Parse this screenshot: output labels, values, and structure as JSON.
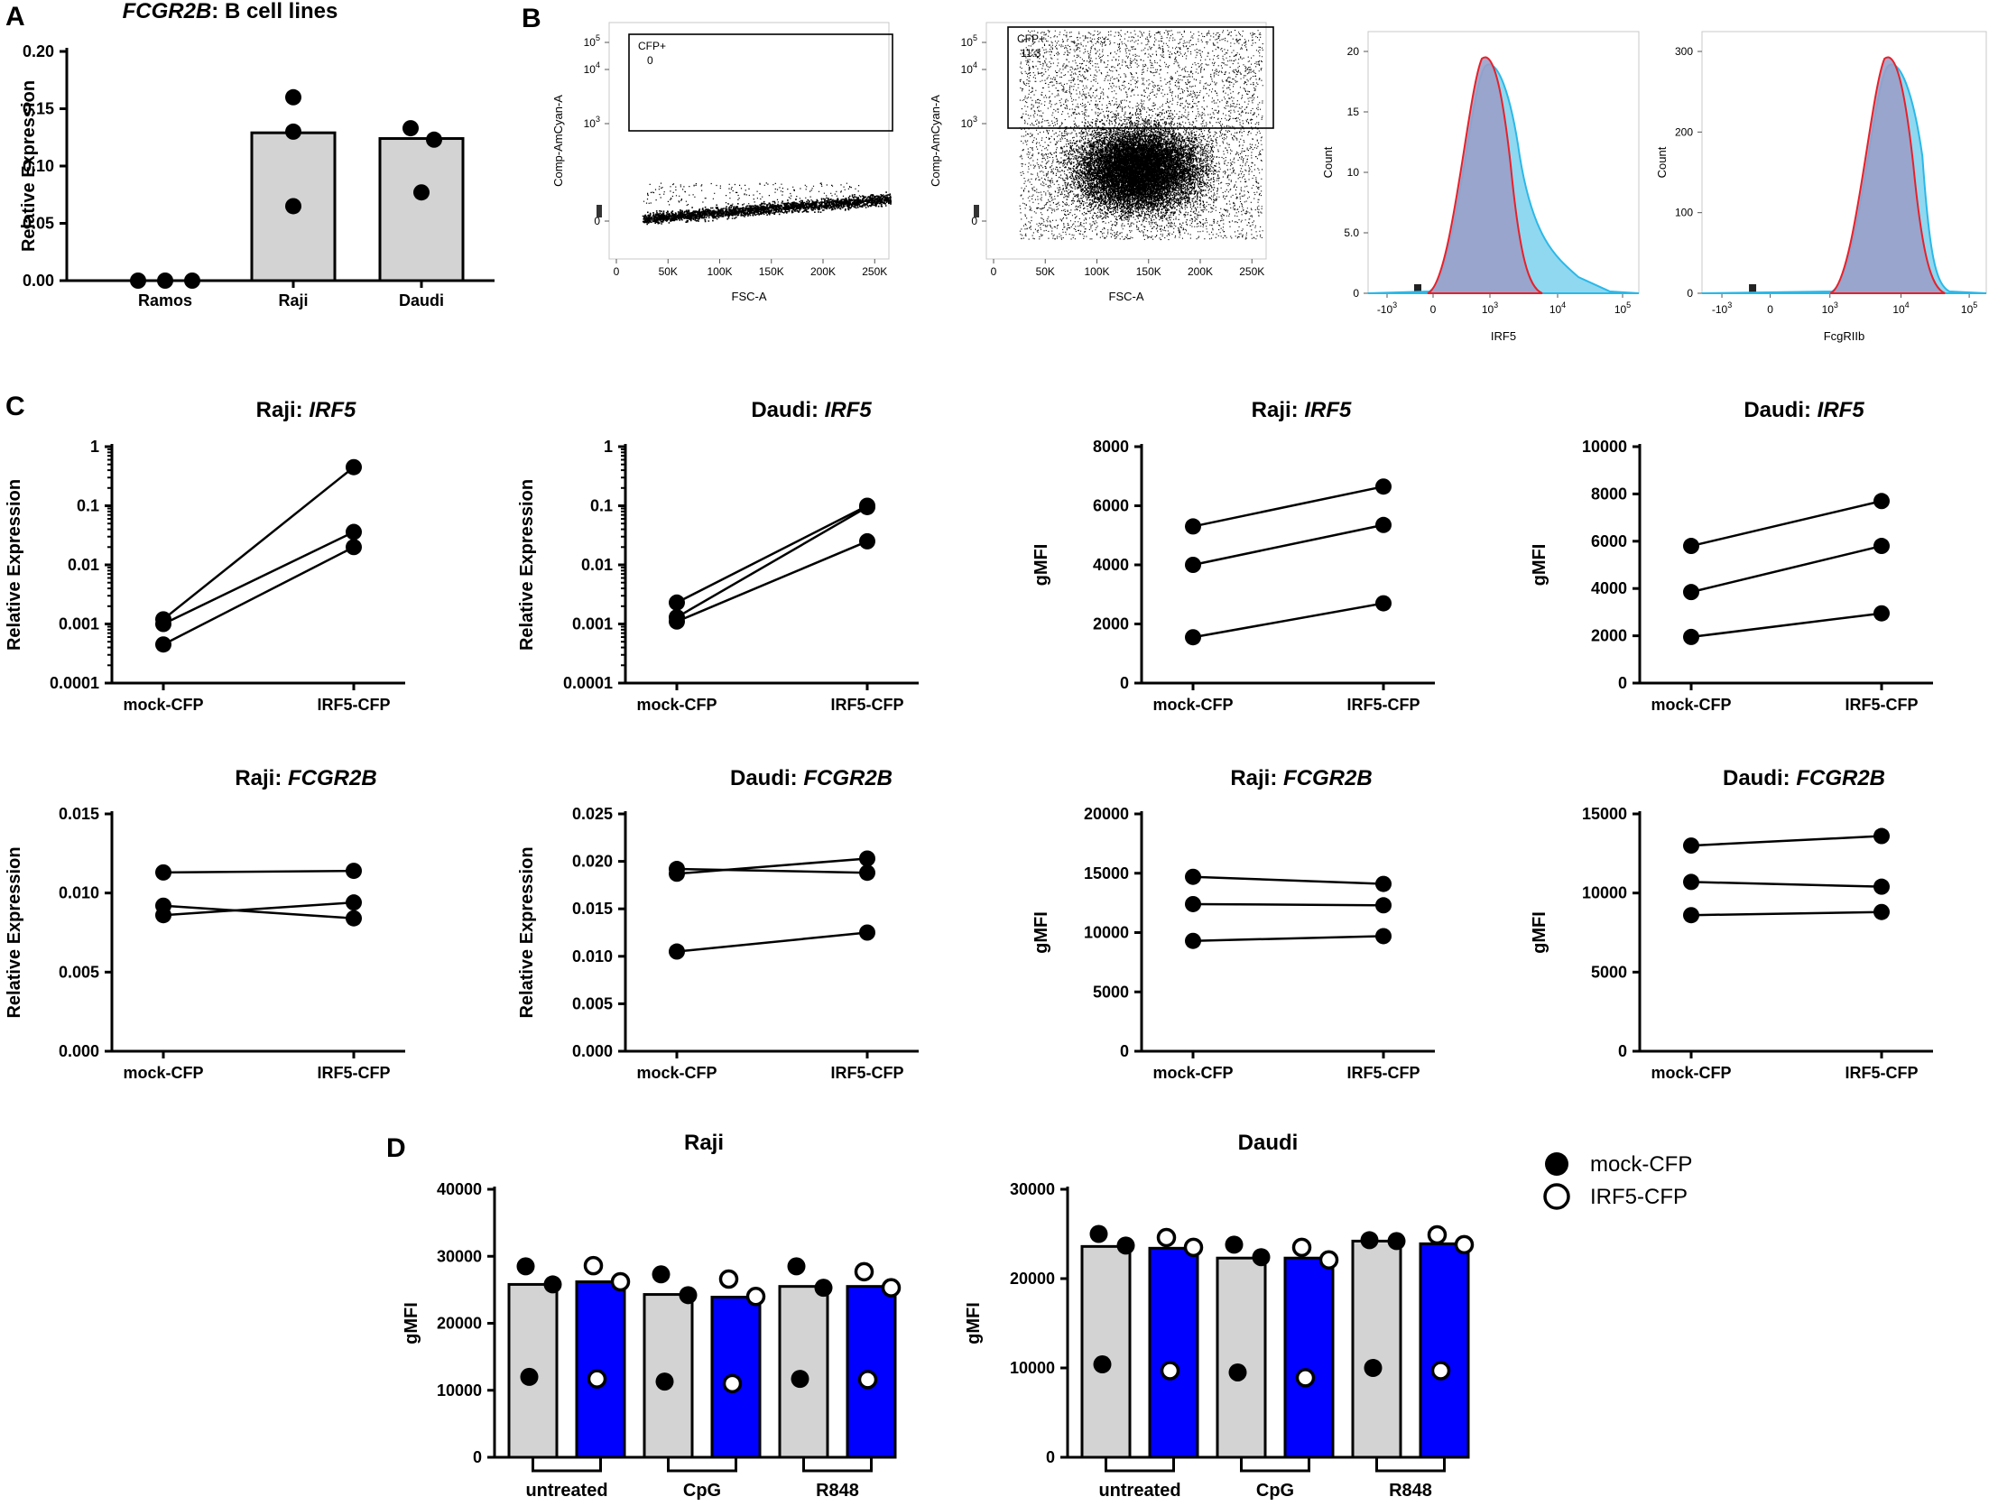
{
  "panel_letters": {
    "A": "A",
    "B": "B",
    "C": "C",
    "D": "D"
  },
  "colors": {
    "grey_bar": "#d3d3d3",
    "blue_bar": "#0000ff",
    "red_hist": "#e8202a",
    "cyan_hist": "#2bb8e8",
    "hist_fill": "#9aa0c8"
  },
  "chart_data": [
    {
      "id": "A",
      "type": "bar",
      "title_italic": "FCGR2B",
      "title_rest": ": B cell lines",
      "categories": [
        "Ramos",
        "Raji",
        "Daudi"
      ],
      "values": [
        0.0,
        0.129,
        0.124
      ],
      "points": [
        [
          0,
          0,
          0
        ],
        [
          0.16,
          0.13,
          0.065
        ],
        [
          0.133,
          0.123,
          0.077
        ]
      ],
      "ylabel": "Relative Expression",
      "ylim": [
        0,
        0.2
      ],
      "yticks": [
        "0.00",
        "0.05",
        "0.10",
        "0.15",
        "0.20"
      ]
    },
    {
      "id": "B1",
      "type": "scatter",
      "gate_label": "CFP+",
      "gate_value": "0",
      "xlabel": "FSC-A",
      "ylabel": "Comp-AmCyan-A",
      "xticks": [
        "0",
        "50K",
        "100K",
        "150K",
        "200K",
        "250K"
      ],
      "yticks": [
        "0",
        "10",
        "10",
        "10"
      ],
      "ysup": [
        "",
        "3",
        "4",
        "5"
      ]
    },
    {
      "id": "B2",
      "type": "scatter",
      "gate_label": "CFP+",
      "gate_value": "11.3",
      "xlabel": "FSC-A",
      "ylabel": "Comp-AmCyan-A",
      "xticks": [
        "0",
        "50K",
        "100K",
        "150K",
        "200K",
        "250K"
      ],
      "yticks": [
        "0",
        "10",
        "10",
        "10"
      ],
      "ysup": [
        "",
        "3",
        "4",
        "5"
      ]
    },
    {
      "id": "B3",
      "type": "area",
      "xlabel": "IRF5",
      "ylabel": "Count",
      "xticks": [
        "-10",
        "0",
        "10",
        "10",
        "10"
      ],
      "xsup": [
        "3",
        "",
        "3",
        "4",
        "5"
      ],
      "yticks": [
        "0",
        "5.0",
        "10",
        "15",
        "20"
      ]
    },
    {
      "id": "B4",
      "type": "area",
      "xlabel": "FcgRIIb",
      "ylabel": "Count",
      "xticks": [
        "-10",
        "0",
        "10",
        "10",
        "10"
      ],
      "xsup": [
        "3",
        "",
        "3",
        "4",
        "5"
      ],
      "yticks": [
        "0",
        "100",
        "200",
        "300"
      ]
    },
    {
      "id": "C1",
      "type": "line",
      "title_plain": "Raji: ",
      "title_italic": "IRF5",
      "ylabel": "Relative Expression",
      "scale": "log",
      "categories": [
        "mock-CFP",
        "IRF5-CFP"
      ],
      "ylim": [
        0.0001,
        1
      ],
      "yticks": [
        "0.0001",
        "0.001",
        "0.01",
        "0.1",
        "1"
      ],
      "series": [
        [
          0.0012,
          0.45
        ],
        [
          0.001,
          0.036
        ],
        [
          0.00045,
          0.02
        ]
      ]
    },
    {
      "id": "C2",
      "type": "line",
      "title_plain": "Daudi: ",
      "title_italic": "IRF5",
      "ylabel": "Relative Expression",
      "scale": "log",
      "categories": [
        "mock-CFP",
        "IRF5-CFP"
      ],
      "ylim": [
        0.0001,
        1
      ],
      "yticks": [
        "0.0001",
        "0.001",
        "0.01",
        "0.1",
        "1"
      ],
      "series": [
        [
          0.0023,
          0.1
        ],
        [
          0.0013,
          0.095
        ],
        [
          0.0011,
          0.025
        ]
      ]
    },
    {
      "id": "C3",
      "type": "line",
      "title_plain": "Raji: ",
      "title_italic": "IRF5",
      "ylabel": "gMFI",
      "scale": "linear",
      "categories": [
        "mock-CFP",
        "IRF5-CFP"
      ],
      "ylim": [
        0,
        8000
      ],
      "yticks": [
        "0",
        "2000",
        "4000",
        "6000",
        "8000"
      ],
      "series": [
        [
          5300,
          6650
        ],
        [
          4000,
          5350
        ],
        [
          1550,
          2700
        ]
      ]
    },
    {
      "id": "C4",
      "type": "line",
      "title_plain": "Daudi: ",
      "title_italic": "IRF5",
      "ylabel": "gMFI",
      "scale": "linear",
      "categories": [
        "mock-CFP",
        "IRF5-CFP"
      ],
      "ylim": [
        0,
        10000
      ],
      "yticks": [
        "0",
        "2000",
        "4000",
        "6000",
        "8000",
        "10000"
      ],
      "series": [
        [
          5800,
          7700
        ],
        [
          3850,
          5800
        ],
        [
          1950,
          2950
        ]
      ]
    },
    {
      "id": "C5",
      "type": "line",
      "title_plain": "Raji: ",
      "title_italic": "FCGR2B",
      "ylabel": "Relative Expression",
      "scale": "linear",
      "categories": [
        "mock-CFP",
        "IRF5-CFP"
      ],
      "ylim": [
        0,
        0.015
      ],
      "yticks": [
        "0.000",
        "0.005",
        "0.010",
        "0.015"
      ],
      "series": [
        [
          0.0113,
          0.0114
        ],
        [
          0.0092,
          0.0084
        ],
        [
          0.0086,
          0.0094
        ]
      ]
    },
    {
      "id": "C6",
      "type": "line",
      "title_plain": "Daudi: ",
      "title_italic": "FCGR2B",
      "ylabel": "Relative Expression",
      "scale": "linear",
      "categories": [
        "mock-CFP",
        "IRF5-CFP"
      ],
      "ylim": [
        0,
        0.025
      ],
      "yticks": [
        "0.000",
        "0.005",
        "0.010",
        "0.015",
        "0.020",
        "0.025"
      ],
      "series": [
        [
          0.0192,
          0.0188
        ],
        [
          0.0187,
          0.0203
        ],
        [
          0.0105,
          0.0125
        ]
      ]
    },
    {
      "id": "C7",
      "type": "line",
      "title_plain": "Raji: ",
      "title_italic": "FCGR2B",
      "ylabel": "gMFI",
      "scale": "linear",
      "categories": [
        "mock-CFP",
        "IRF5-CFP"
      ],
      "ylim": [
        0,
        20000
      ],
      "yticks": [
        "0",
        "5000",
        "10000",
        "15000",
        "20000"
      ],
      "series": [
        [
          14700,
          14100
        ],
        [
          12400,
          12300
        ],
        [
          9300,
          9700
        ]
      ]
    },
    {
      "id": "C8",
      "type": "line",
      "title_plain": "Daudi: ",
      "title_italic": "FCGR2B",
      "ylabel": "gMFI",
      "scale": "linear",
      "categories": [
        "mock-CFP",
        "IRF5-CFP"
      ],
      "ylim": [
        0,
        15000
      ],
      "yticks": [
        "0",
        "5000",
        "10000",
        "15000"
      ],
      "series": [
        [
          13000,
          13600
        ],
        [
          10700,
          10400
        ],
        [
          8600,
          8800
        ]
      ]
    },
    {
      "id": "D1",
      "type": "bar",
      "title": "Raji",
      "ylabel": "gMFI",
      "ylim": [
        0,
        40000
      ],
      "yticks": [
        "0",
        "10000",
        "20000",
        "30000",
        "40000"
      ],
      "groups": [
        "untreated",
        "CpG",
        "R848"
      ],
      "mock_values": [
        25800,
        24300,
        25500
      ],
      "irf5_values": [
        26200,
        23900,
        25500
      ],
      "mock_points": [
        [
          28500,
          25800,
          12000
        ],
        [
          27300,
          24200,
          11300
        ],
        [
          28500,
          25300,
          11700
        ]
      ],
      "irf5_points": [
        [
          28600,
          26200,
          11700
        ],
        [
          26600,
          24000,
          11000
        ],
        [
          27700,
          25300,
          11600
        ]
      ]
    },
    {
      "id": "D2",
      "type": "bar",
      "title": "Daudi",
      "ylabel": "gMFI",
      "ylim": [
        0,
        30000
      ],
      "yticks": [
        "0",
        "10000",
        "20000",
        "30000"
      ],
      "groups": [
        "untreated",
        "CpG",
        "R848"
      ],
      "mock_values": [
        23600,
        22300,
        24200
      ],
      "irf5_values": [
        23400,
        22300,
        23900
      ],
      "mock_points": [
        [
          25000,
          23700,
          10400
        ],
        [
          23800,
          22400,
          9500
        ],
        [
          24300,
          24200,
          10000
        ]
      ],
      "irf5_points": [
        [
          24600,
          23500,
          9700
        ],
        [
          23500,
          22100,
          8900
        ],
        [
          24900,
          23800,
          9700
        ]
      ]
    }
  ],
  "legend": {
    "mock": "mock-CFP",
    "irf5": "IRF5-CFP"
  }
}
